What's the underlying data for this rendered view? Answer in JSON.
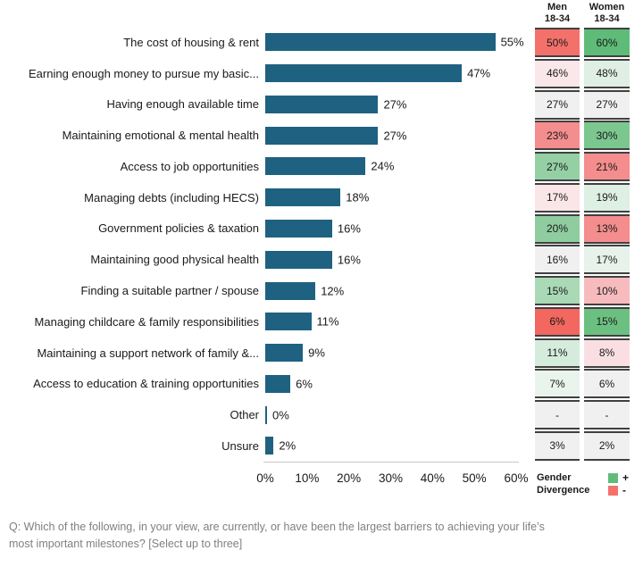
{
  "colors": {
    "bar": "#1F6180",
    "cell_border": "#404040",
    "axis_line": "#C9C9C9",
    "footer_text": "#808080",
    "legend_positive": "#5FBC78",
    "legend_negative": "#F4716B"
  },
  "columns": {
    "men_header": "Men\n18-34",
    "women_header": "Women\n18-34"
  },
  "rows": [
    {
      "label": "The cost of housing & rent",
      "value": 55,
      "value_label": "55%",
      "men": {
        "label": "50%",
        "bg": "#F4716B"
      },
      "women": {
        "label": "60%",
        "bg": "#5FBC78"
      }
    },
    {
      "label": "Earning enough money to pursue my basic...",
      "value": 47,
      "value_label": "47%",
      "men": {
        "label": "46%",
        "bg": "#FAE7E9"
      },
      "women": {
        "label": "48%",
        "bg": "#DFEFE4"
      }
    },
    {
      "label": "Having enough available time",
      "value": 27,
      "value_label": "27%",
      "men": {
        "label": "27%",
        "bg": "#F0F0F0"
      },
      "women": {
        "label": "27%",
        "bg": "#F0F0F0"
      }
    },
    {
      "label": "Maintaining emotional & mental health",
      "value": 27,
      "value_label": "27%",
      "men": {
        "label": "23%",
        "bg": "#F48D8D"
      },
      "women": {
        "label": "30%",
        "bg": "#7CC690"
      }
    },
    {
      "label": "Access to job opportunities",
      "value": 24,
      "value_label": "24%",
      "men": {
        "label": "27%",
        "bg": "#95D0A5"
      },
      "women": {
        "label": "21%",
        "bg": "#F48D8D"
      }
    },
    {
      "label": "Managing debts (including HECS)",
      "value": 18,
      "value_label": "18%",
      "men": {
        "label": "17%",
        "bg": "#FAE5E7"
      },
      "women": {
        "label": "19%",
        "bg": "#DEEFE3"
      }
    },
    {
      "label": "Government policies & taxation",
      "value": 16,
      "value_label": "16%",
      "men": {
        "label": "20%",
        "bg": "#8FCCA0"
      },
      "women": {
        "label": "13%",
        "bg": "#F48D8D"
      }
    },
    {
      "label": "Maintaining good physical health",
      "value": 16,
      "value_label": "16%",
      "men": {
        "label": "16%",
        "bg": "#F0F0F0"
      },
      "women": {
        "label": "17%",
        "bg": "#E7F3EA"
      }
    },
    {
      "label": "Finding a suitable partner / spouse",
      "value": 12,
      "value_label": "12%",
      "men": {
        "label": "15%",
        "bg": "#A9D9B5"
      },
      "women": {
        "label": "10%",
        "bg": "#F7BBBE"
      }
    },
    {
      "label": "Managing childcare & family responsibilities",
      "value": 11,
      "value_label": "11%",
      "men": {
        "label": "6%",
        "bg": "#F2675F"
      },
      "women": {
        "label": "15%",
        "bg": "#6BC081"
      }
    },
    {
      "label": "Maintaining a support network of family &...",
      "value": 9,
      "value_label": "9%",
      "men": {
        "label": "11%",
        "bg": "#D5ECDC"
      },
      "women": {
        "label": "8%",
        "bg": "#FADFE2"
      }
    },
    {
      "label": "Access to education & training opportunities",
      "value": 6,
      "value_label": "6%",
      "men": {
        "label": "7%",
        "bg": "#E9F4EC"
      },
      "women": {
        "label": "6%",
        "bg": "#F0F0F0"
      }
    },
    {
      "label": "Other",
      "value": 0,
      "value_label": "0%",
      "men": {
        "label": "-",
        "bg": "#F0F0F0"
      },
      "women": {
        "label": "-",
        "bg": "#F0F0F0"
      }
    },
    {
      "label": "Unsure",
      "value": 2,
      "value_label": "2%",
      "men": {
        "label": "3%",
        "bg": "#F0F0F0"
      },
      "women": {
        "label": "2%",
        "bg": "#F0F0F0"
      }
    }
  ],
  "legend": {
    "title": "Gender\nDivergence",
    "plus": "+",
    "minus": "-"
  },
  "footer": {
    "line1": "Q: Which of the following, in your view, are currently, or have been the largest barriers to achieving your life’s",
    "line2": "most important milestones? [Select up to three]"
  },
  "chart_data": {
    "type": "bar",
    "orientation": "horizontal",
    "title": "",
    "xlabel": "",
    "ylabel": "",
    "xlim": [
      0,
      60
    ],
    "x_ticks": [
      "0%",
      "10%",
      "20%",
      "30%",
      "40%",
      "50%",
      "60%"
    ],
    "grid": false,
    "categories": [
      "The cost of housing & rent",
      "Earning enough money to pursue my basic...",
      "Having enough available time",
      "Maintaining emotional & mental health",
      "Access to job opportunities",
      "Managing debts (including HECS)",
      "Government policies & taxation",
      "Maintaining good physical health",
      "Finding a suitable partner / spouse",
      "Managing childcare & family responsibilities",
      "Maintaining a support network of family &...",
      "Access to education & training opportunities",
      "Other",
      "Unsure"
    ],
    "series": [
      {
        "name": "Total",
        "values": [
          55,
          47,
          27,
          27,
          24,
          18,
          16,
          16,
          12,
          11,
          9,
          6,
          0,
          2
        ]
      },
      {
        "name": "Men 18-34",
        "values": [
          50,
          46,
          27,
          23,
          27,
          17,
          20,
          16,
          15,
          6,
          11,
          7,
          null,
          3
        ]
      },
      {
        "name": "Women 18-34",
        "values": [
          60,
          48,
          27,
          30,
          21,
          19,
          13,
          17,
          10,
          15,
          8,
          6,
          null,
          2
        ]
      }
    ],
    "legend_note": "Gender Divergence: green = +, red = -",
    "annotation": "Q: Which of the following, in your view, are currently, or have been the largest barriers to achieving your life’s most important milestones? [Select up to three]"
  }
}
